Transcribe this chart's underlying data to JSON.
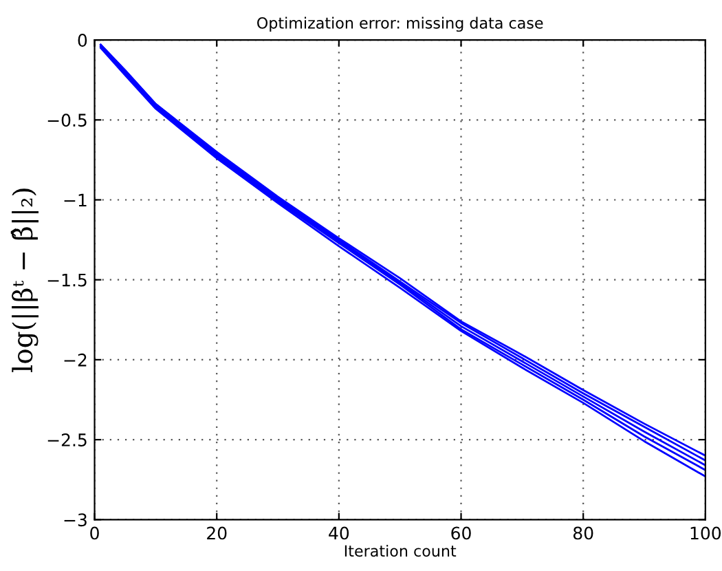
{
  "chart_data": {
    "type": "line",
    "title": "Optimization error: missing data case",
    "xlabel": "Iteration count",
    "ylabel": "log(||βᵗ − β̂||₂)",
    "x": [
      1,
      5,
      10,
      20,
      30,
      40,
      50,
      60,
      70,
      80,
      90,
      100
    ],
    "series": [
      {
        "color": "#0000ff",
        "values": [
          -0.03,
          -0.19,
          -0.4,
          -0.7,
          -0.98,
          -1.24,
          -1.49,
          -1.76,
          -1.97,
          -2.19,
          -2.4,
          -2.6
        ]
      },
      {
        "color": "#0000ff",
        "values": [
          -0.03,
          -0.19,
          -0.4,
          -0.71,
          -0.99,
          -1.25,
          -1.51,
          -1.77,
          -1.99,
          -2.21,
          -2.42,
          -2.63
        ]
      },
      {
        "color": "#0000ff",
        "values": [
          -0.04,
          -0.2,
          -0.41,
          -0.72,
          -1.0,
          -1.26,
          -1.52,
          -1.79,
          -2.01,
          -2.23,
          -2.45,
          -2.66
        ]
      },
      {
        "color": "#0000ff",
        "values": [
          -0.04,
          -0.21,
          -0.42,
          -0.73,
          -1.01,
          -1.27,
          -1.53,
          -1.81,
          -2.03,
          -2.25,
          -2.48,
          -2.69
        ]
      },
      {
        "color": "#0000ff",
        "values": [
          -0.05,
          -0.22,
          -0.43,
          -0.74,
          -1.02,
          -1.29,
          -1.55,
          -1.82,
          -2.05,
          -2.27,
          -2.51,
          -2.73
        ]
      }
    ],
    "xlim": [
      0,
      100
    ],
    "xticks": [
      0,
      20,
      40,
      60,
      80,
      100
    ],
    "ylim": [
      -3,
      0
    ],
    "yticks": [
      {
        "value": -3,
        "label": "−3"
      },
      {
        "value": -2.5,
        "label": "−2.5"
      },
      {
        "value": -2,
        "label": "−2"
      },
      {
        "value": -1.5,
        "label": "−1.5"
      },
      {
        "value": -1,
        "label": "−1"
      },
      {
        "value": -0.5,
        "label": "−0.5"
      },
      0
    ],
    "grid": true,
    "line_style": "solid",
    "marker": "none"
  }
}
